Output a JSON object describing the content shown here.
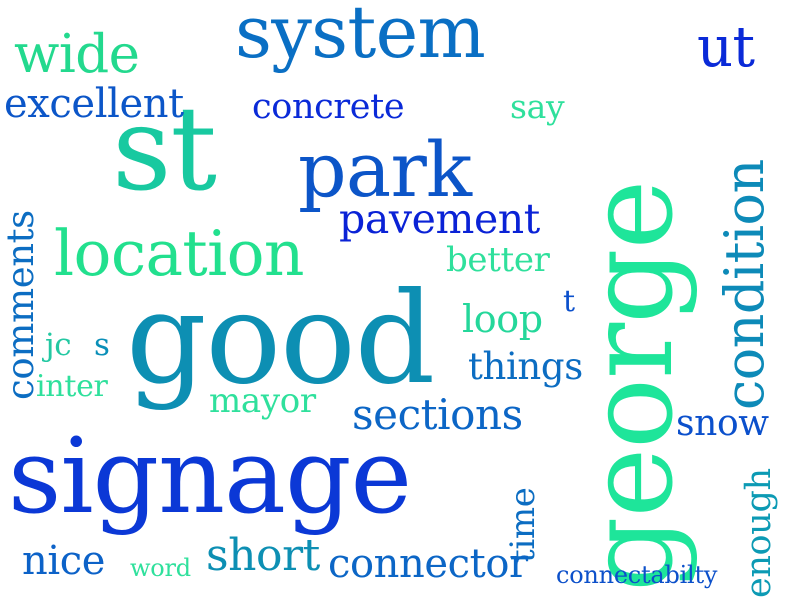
{
  "words": [
    {
      "text": "system",
      "color": "#0a6fc4"
    },
    {
      "text": "george",
      "color": "#1ee59a"
    },
    {
      "text": "st",
      "color": "#18c9a0"
    },
    {
      "text": "park",
      "color": "#0c55c8"
    },
    {
      "text": "good",
      "color": "#0d8fb3"
    },
    {
      "text": "signage",
      "color": "#0b38d6"
    },
    {
      "text": "location",
      "color": "#22e08e"
    },
    {
      "text": "wide",
      "color": "#23d98e"
    },
    {
      "text": "ut",
      "color": "#0a2ad8"
    },
    {
      "text": "excellent",
      "color": "#0c56c8"
    },
    {
      "text": "concrete",
      "color": "#0a2ad8"
    },
    {
      "text": "say",
      "color": "#2fe09c"
    },
    {
      "text": "condition",
      "color": "#0d8ab8"
    },
    {
      "text": "pavement",
      "color": "#0a22d6"
    },
    {
      "text": "comments",
      "color": "#0c6dc2"
    },
    {
      "text": "better",
      "color": "#2fe09c"
    },
    {
      "text": "t",
      "color": "#0b50cc"
    },
    {
      "text": "loop",
      "color": "#24d79a"
    },
    {
      "text": "jc",
      "color": "#23c8a2"
    },
    {
      "text": "s",
      "color": "#0a8fb8"
    },
    {
      "text": "things",
      "color": "#0c6dc2"
    },
    {
      "text": "inter",
      "color": "#2fe09c"
    },
    {
      "text": "mayor",
      "color": "#2fe09c"
    },
    {
      "text": "sections",
      "color": "#0c66c6"
    },
    {
      "text": "snow",
      "color": "#0b50cc"
    },
    {
      "text": "time",
      "color": "#0c6dc2"
    },
    {
      "text": "enough",
      "color": "#0c9ab4"
    },
    {
      "text": "nice",
      "color": "#0c62c8"
    },
    {
      "text": "word",
      "color": "#2fe09c"
    },
    {
      "text": "short",
      "color": "#0d8fb3"
    },
    {
      "text": "connector",
      "color": "#0c66c6"
    },
    {
      "text": "connectabilty",
      "color": "#0c50ca"
    }
  ]
}
